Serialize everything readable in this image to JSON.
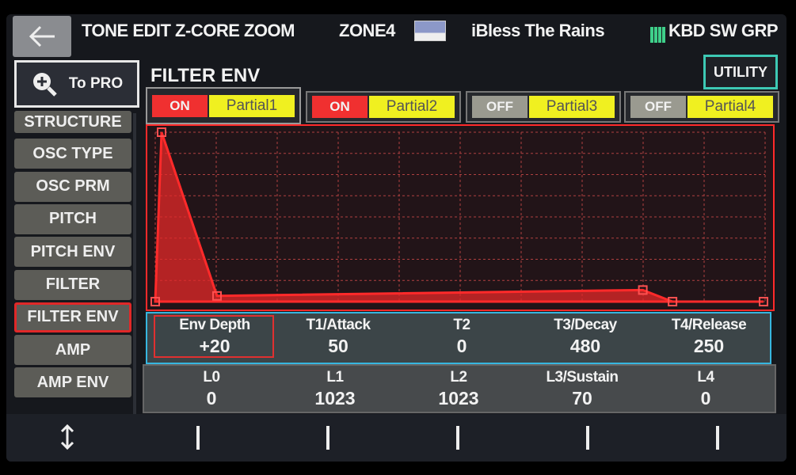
{
  "header": {
    "back_icon": "arrow-left-icon",
    "title": "TONE EDIT Z-CORE ZOOM",
    "zone": "ZONE4",
    "tone_name": "iBless The Rains",
    "kbd_sw": "KBD SW GRP"
  },
  "to_pro": {
    "label": "To PRO",
    "icon": "zoom-plus-icon"
  },
  "utility_label": "UTILITY",
  "page_title": "FILTER ENV",
  "sidebar": {
    "items": [
      "STRUCTURE",
      "OSC TYPE",
      "OSC PRM",
      "PITCH",
      "PITCH ENV",
      "FILTER",
      "FILTER ENV",
      "AMP",
      "AMP ENV"
    ],
    "selected": "FILTER ENV"
  },
  "partials": [
    {
      "state": "ON",
      "name": "Partial1",
      "selected": true
    },
    {
      "state": "ON",
      "name": "Partial2",
      "selected": false
    },
    {
      "state": "OFF",
      "name": "Partial3",
      "selected": false
    },
    {
      "state": "OFF",
      "name": "Partial4",
      "selected": false
    }
  ],
  "params_row1": [
    {
      "label": "Env Depth",
      "value": "+20"
    },
    {
      "label": "T1/Attack",
      "value": "50"
    },
    {
      "label": "T2",
      "value": "0"
    },
    {
      "label": "T3/Decay",
      "value": "480"
    },
    {
      "label": "T4/Release",
      "value": "250"
    }
  ],
  "params_row2": [
    {
      "label": "L0",
      "value": "0"
    },
    {
      "label": "L1",
      "value": "1023"
    },
    {
      "label": "L2",
      "value": "1023"
    },
    {
      "label": "L3/Sustain",
      "value": "70"
    },
    {
      "label": "L4",
      "value": "0"
    }
  ],
  "colors": {
    "on": "#f03030",
    "off": "#9a9a90",
    "partial": "#f0f020",
    "envelope": "#ff2a2a",
    "accent": "#3dc9b4"
  },
  "bottom_icon": "up-down-arrow-icon"
}
